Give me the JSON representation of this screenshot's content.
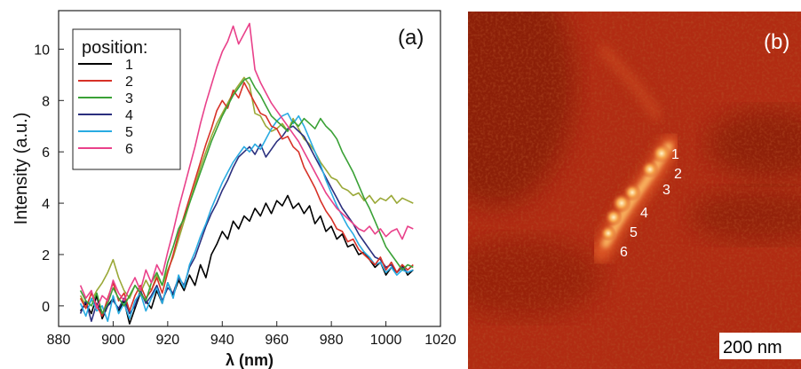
{
  "chart_data": [
    {
      "type": "line",
      "panel_label": "(a)",
      "xlabel": "λ (nm)",
      "ylabel": "Intensity (a.u.)",
      "xlim": [
        880,
        1020
      ],
      "ylim": [
        -0.8,
        11.5
      ],
      "xticks": [
        "880",
        "900",
        "920",
        "940",
        "960",
        "980",
        "1000",
        "1020"
      ],
      "yticks": [
        "0",
        "2",
        "4",
        "6",
        "8",
        "10"
      ],
      "legend_title": "position:",
      "legend_placement": "top-left",
      "x": [
        888,
        890,
        892,
        894,
        896,
        898,
        900,
        902,
        904,
        906,
        908,
        910,
        912,
        914,
        916,
        918,
        920,
        922,
        924,
        926,
        928,
        930,
        932,
        934,
        936,
        938,
        940,
        942,
        944,
        946,
        948,
        950,
        952,
        954,
        956,
        958,
        960,
        962,
        964,
        966,
        968,
        970,
        972,
        974,
        976,
        978,
        980,
        982,
        984,
        986,
        988,
        990,
        992,
        994,
        996,
        998,
        1000,
        1002,
        1004,
        1006,
        1008,
        1010
      ],
      "series": [
        {
          "name": "1",
          "color": "#000000",
          "values": [
            -0.2,
            0.1,
            -0.3,
            0.4,
            -0.5,
            0.0,
            0.3,
            -0.2,
            0.2,
            -0.7,
            -0.1,
            0.5,
            0.2,
            -0.1,
            0.6,
            0.1,
            0.9,
            0.4,
            1.0,
            0.6,
            1.2,
            0.8,
            1.6,
            1.1,
            2.0,
            2.4,
            2.9,
            2.6,
            3.3,
            3.0,
            3.5,
            3.3,
            3.8,
            3.5,
            4.0,
            3.6,
            4.1,
            3.9,
            4.3,
            3.8,
            4.0,
            3.6,
            3.9,
            3.2,
            3.5,
            2.9,
            3.1,
            2.6,
            2.8,
            2.3,
            2.4,
            2.0,
            2.1,
            1.8,
            1.5,
            1.7,
            1.2,
            1.5,
            1.3,
            1.6,
            1.2,
            1.4
          ]
        },
        {
          "name": "2",
          "color": "#d73127",
          "values": [
            0.3,
            -0.1,
            0.5,
            0.0,
            -0.4,
            0.3,
            0.9,
            0.2,
            0.5,
            -0.2,
            0.4,
            0.8,
            0.3,
            0.6,
            1.1,
            0.5,
            1.3,
            2.0,
            2.8,
            3.5,
            4.2,
            4.9,
            5.6,
            6.3,
            6.9,
            7.6,
            8.0,
            7.7,
            8.4,
            8.1,
            8.7,
            8.3,
            7.9,
            7.5,
            7.4,
            7.0,
            6.9,
            6.5,
            6.6,
            6.2,
            6.0,
            5.4,
            5.0,
            4.6,
            4.1,
            3.7,
            3.4,
            3.0,
            2.9,
            2.5,
            2.6,
            2.2,
            2.0,
            1.8,
            1.6,
            1.9,
            1.4,
            1.7,
            1.3,
            1.6,
            1.4,
            1.6
          ]
        },
        {
          "name": "3",
          "color": "#3aa136",
          "values": [
            0.6,
            0.2,
            0.0,
            0.5,
            -0.3,
            0.1,
            0.7,
            0.3,
            0.0,
            0.4,
            0.8,
            0.5,
            0.2,
            0.9,
            1.3,
            0.8,
            1.7,
            2.3,
            3.0,
            3.4,
            4.0,
            4.6,
            5.2,
            5.8,
            6.4,
            6.9,
            7.4,
            7.8,
            8.2,
            8.5,
            8.8,
            8.9,
            8.5,
            8.2,
            7.8,
            7.4,
            7.2,
            7.0,
            6.8,
            7.2,
            7.0,
            7.3,
            7.1,
            6.9,
            7.3,
            7.0,
            6.8,
            6.5,
            6.0,
            5.6,
            5.2,
            4.7,
            4.2,
            3.8,
            3.3,
            2.8,
            2.3,
            2.0,
            1.7,
            1.4,
            1.6,
            1.5
          ]
        },
        {
          "name": "4",
          "color": "#2b2f7e",
          "values": [
            -0.3,
            0.2,
            -0.6,
            0.1,
            -0.4,
            0.0,
            0.2,
            -0.1,
            0.3,
            -0.3,
            0.0,
            0.6,
            0.1,
            0.4,
            0.8,
            0.2,
            0.7,
            0.5,
            1.1,
            0.8,
            1.5,
            1.9,
            2.5,
            3.1,
            3.6,
            4.0,
            4.5,
            4.9,
            5.4,
            5.8,
            6.0,
            6.2,
            5.9,
            6.3,
            5.8,
            6.1,
            6.4,
            6.6,
            6.9,
            7.0,
            6.8,
            6.6,
            6.2,
            5.8,
            5.4,
            5.0,
            4.6,
            4.2,
            3.8,
            3.5,
            3.2,
            2.8,
            2.5,
            2.2,
            1.9,
            1.8,
            1.5,
            1.6,
            1.3,
            1.5,
            1.3,
            1.4
          ]
        },
        {
          "name": "5",
          "color": "#29abe2",
          "values": [
            0.1,
            -0.4,
            0.3,
            -0.2,
            0.0,
            -0.6,
            0.4,
            -0.3,
            0.1,
            -0.5,
            0.2,
            0.5,
            -0.2,
            0.3,
            0.7,
            0.1,
            0.9,
            0.3,
            1.2,
            0.7,
            1.6,
            2.1,
            2.7,
            3.2,
            3.8,
            4.3,
            4.8,
            5.2,
            5.6,
            5.9,
            6.2,
            6.0,
            6.3,
            6.1,
            6.5,
            6.9,
            7.2,
            7.4,
            7.5,
            7.1,
            7.4,
            7.0,
            6.5,
            6.0,
            5.5,
            4.9,
            4.4,
            3.9,
            3.5,
            3.1,
            2.8,
            2.4,
            2.1,
            1.9,
            1.6,
            1.7,
            1.3,
            1.5,
            1.2,
            1.4,
            1.3,
            1.4
          ]
        },
        {
          "name": "6",
          "color": "#e9418a",
          "values": [
            0.8,
            0.3,
            0.6,
            -0.1,
            0.4,
            0.2,
            1.0,
            0.5,
            0.2,
            0.7,
            1.1,
            0.6,
            1.4,
            0.9,
            1.6,
            1.2,
            2.1,
            2.9,
            3.8,
            4.6,
            5.4,
            6.2,
            7.1,
            7.9,
            8.6,
            9.3,
            9.9,
            10.3,
            10.9,
            10.2,
            10.6,
            11.0,
            9.2,
            8.7,
            8.3,
            7.9,
            7.6,
            7.3,
            7.0,
            6.7,
            6.4,
            6.0,
            5.6,
            5.2,
            4.8,
            4.4,
            4.1,
            3.8,
            3.6,
            3.4,
            3.2,
            3.0,
            2.9,
            3.1,
            2.8,
            3.0,
            2.7,
            2.9,
            3.0,
            2.6,
            3.1,
            3.0
          ]
        },
        {
          "name": "",
          "color": "#9aa837",
          "values": [
            0.4,
            0.0,
            0.2,
            0.6,
            0.9,
            1.3,
            1.8,
            1.1,
            0.6,
            0.3,
            0.8,
            0.5,
            1.0,
            0.6,
            1.2,
            0.8,
            1.4,
            1.9,
            2.6,
            3.3,
            4.0,
            4.7,
            5.4,
            6.0,
            6.6,
            7.1,
            7.5,
            7.9,
            8.3,
            8.6,
            8.9,
            8.6,
            7.5,
            7.4,
            7.0,
            6.8,
            6.9,
            7.1,
            6.8,
            7.3,
            6.9,
            6.5,
            6.3,
            6.0,
            5.6,
            5.3,
            5.0,
            4.9,
            4.6,
            4.5,
            4.3,
            4.4,
            4.1,
            4.3,
            4.0,
            4.2,
            4.1,
            4.3,
            4.0,
            4.2,
            4.1,
            4.0
          ]
        }
      ]
    },
    {
      "type": "image",
      "panel_label": "(b)",
      "scale_bar_label": "200 nm",
      "colormap": [
        "#3d0800",
        "#8c1d0b",
        "#c0391a",
        "#f08a3a",
        "#fff3c8"
      ],
      "point_labels": [
        "1",
        "2",
        "3",
        "4",
        "5",
        "6"
      ]
    }
  ]
}
